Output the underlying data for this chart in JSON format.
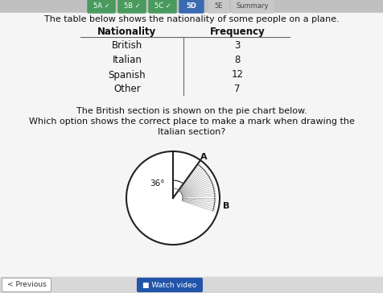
{
  "header_tabs": [
    "5A",
    "5B",
    "5C",
    "5D",
    "5E",
    "Summary"
  ],
  "header_checks": [
    true,
    true,
    true,
    false,
    false,
    false
  ],
  "header_active": 3,
  "intro_text": "The table below shows the nationality of some people on a plane.",
  "table_headers": [
    "Nationality",
    "Frequency"
  ],
  "table_rows": [
    [
      "British",
      "3"
    ],
    [
      "Italian",
      "8"
    ],
    [
      "Spanish",
      "12"
    ],
    [
      "Other",
      "7"
    ]
  ],
  "question_text1": "The British section is shown on the pie chart below.",
  "question_text2": "Which option shows the correct place to make a mark when drawing the",
  "question_text3": "Italian section?",
  "angle_label": "36°",
  "label_A": "A",
  "label_B": "B",
  "bg_color": "#d0d0d0",
  "content_bg": "#ffffff",
  "tab_active_color": "#3a6ab0",
  "tab_check_color": "#4a9a5e",
  "tab_inactive_color": "#b0b0b0",
  "footer_prev": "< Previous",
  "footer_watch": "Watch video"
}
